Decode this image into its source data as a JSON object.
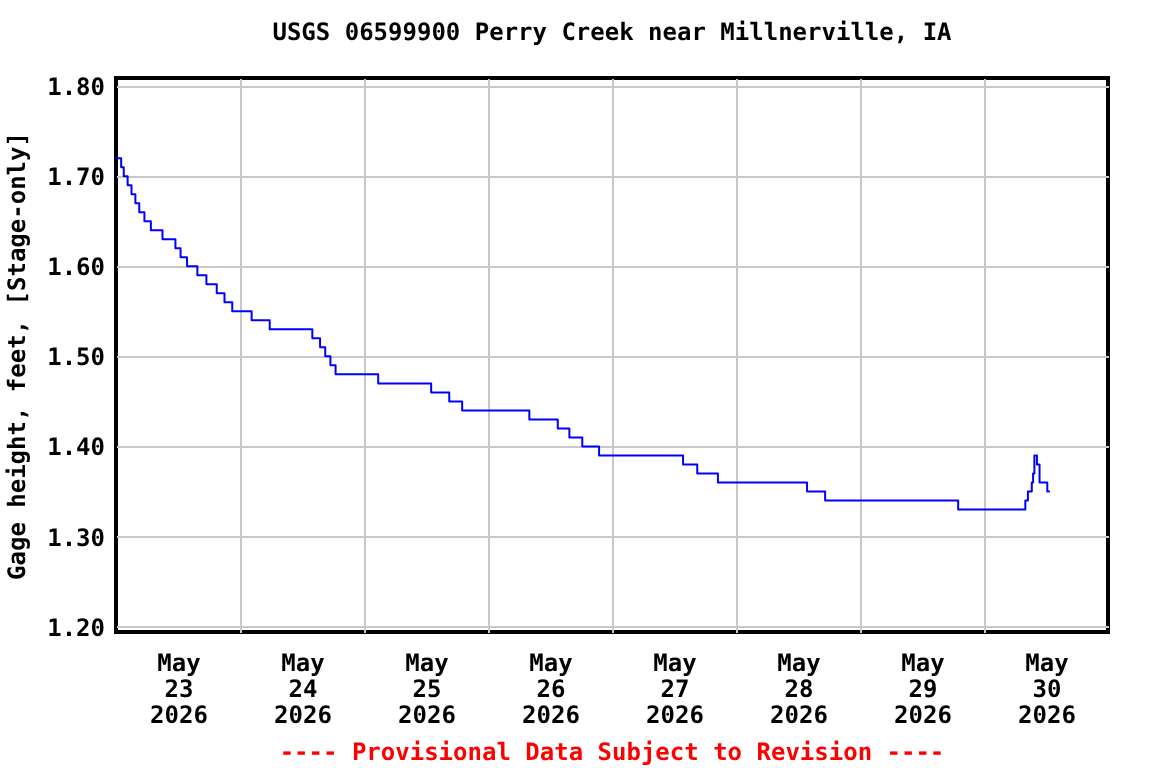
{
  "chart_data": {
    "type": "step",
    "title": "USGS 06599900 Perry Creek near Millnerville, IA",
    "ylabel": "Gage height, feet, [Stage-only]",
    "annotations": [
      "---- Provisional Data Subject to Revision ----"
    ],
    "x": [
      "2026-05-23T00:00",
      "2026-05-23T01:00",
      "2026-05-23T01:30",
      "2026-05-23T02:15",
      "2026-05-23T03:00",
      "2026-05-23T03:45",
      "2026-05-23T04:30",
      "2026-05-23T05:30",
      "2026-05-23T06:45",
      "2026-05-23T09:00",
      "2026-05-23T11:30",
      "2026-05-23T12:30",
      "2026-05-23T13:45",
      "2026-05-23T15:45",
      "2026-05-23T17:30",
      "2026-05-23T19:30",
      "2026-05-23T21:00",
      "2026-05-23T22:30",
      "2026-05-24T02:15",
      "2026-05-24T05:45",
      "2026-05-24T14:00",
      "2026-05-24T15:30",
      "2026-05-24T16:30",
      "2026-05-24T17:30",
      "2026-05-24T18:30",
      "2026-05-25T02:45",
      "2026-05-25T13:00",
      "2026-05-25T16:30",
      "2026-05-25T19:00",
      "2026-05-26T08:00",
      "2026-05-26T13:30",
      "2026-05-26T15:45",
      "2026-05-26T18:15",
      "2026-05-26T21:30",
      "2026-05-27T13:45",
      "2026-05-27T16:30",
      "2026-05-27T20:30",
      "2026-05-28T13:45",
      "2026-05-28T17:15",
      "2026-05-29T19:00",
      "2026-05-30T08:00",
      "2026-05-30T08:30",
      "2026-05-30T09:15",
      "2026-05-30T09:30",
      "2026-05-30T09:45",
      "2026-05-30T10:15",
      "2026-05-30T10:45",
      "2026-05-30T12:15",
      "2026-05-30T12:45"
    ],
    "series": [
      {
        "color": "#0000ff",
        "values": [
          1.72,
          1.71,
          1.7,
          1.69,
          1.68,
          1.67,
          1.66,
          1.65,
          1.64,
          1.63,
          1.62,
          1.61,
          1.6,
          1.59,
          1.58,
          1.57,
          1.56,
          1.55,
          1.54,
          1.53,
          1.52,
          1.51,
          1.5,
          1.49,
          1.48,
          1.47,
          1.46,
          1.45,
          1.44,
          1.43,
          1.42,
          1.41,
          1.4,
          1.39,
          1.38,
          1.37,
          1.36,
          1.35,
          1.34,
          1.33,
          1.34,
          1.35,
          1.36,
          1.37,
          1.39,
          1.38,
          1.36,
          1.35,
          1.35
        ]
      }
    ],
    "xlim": [
      "2026-05-23T00:00",
      "2026-05-31T00:00"
    ],
    "xticks": [
      {
        "value": "2026-05-23T12:00",
        "label": "May\n23\n2026"
      },
      {
        "value": "2026-05-24T00:00",
        "label": null
      },
      {
        "value": "2026-05-24T12:00",
        "label": "May\n24\n2026"
      },
      {
        "value": "2026-05-25T00:00",
        "label": null
      },
      {
        "value": "2026-05-25T12:00",
        "label": "May\n25\n2026"
      },
      {
        "value": "2026-05-26T00:00",
        "label": null
      },
      {
        "value": "2026-05-26T12:00",
        "label": "May\n26\n2026"
      },
      {
        "value": "2026-05-27T00:00",
        "label": null
      },
      {
        "value": "2026-05-27T12:00",
        "label": "May\n27\n2026"
      },
      {
        "value": "2026-05-28T00:00",
        "label": null
      },
      {
        "value": "2026-05-28T12:00",
        "label": "May\n28\n2026"
      },
      {
        "value": "2026-05-29T00:00",
        "label": null
      },
      {
        "value": "2026-05-29T12:00",
        "label": "May\n29\n2026"
      },
      {
        "value": "2026-05-30T00:00",
        "label": null
      },
      {
        "value": "2026-05-30T12:00",
        "label": "May\n30\n2026"
      }
    ],
    "ylim": [
      1.194,
      1.809
    ],
    "yticks": [
      {
        "value": 1.2,
        "label": "1.20"
      },
      {
        "value": 1.3,
        "label": "1.30"
      },
      {
        "value": 1.4,
        "label": "1.40"
      },
      {
        "value": 1.5,
        "label": "1.50"
      },
      {
        "value": 1.6,
        "label": "1.60"
      },
      {
        "value": 1.7,
        "label": "1.70"
      },
      {
        "value": 1.8,
        "label": "1.80"
      }
    ],
    "grid": true
  }
}
